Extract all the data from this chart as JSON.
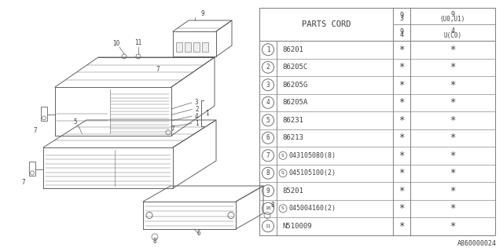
{
  "bg_color": "#ffffff",
  "diagram_id": "A860000024",
  "table_header": "PARTS CORD",
  "col1_top": "9\n3",
  "col1_sub": "(U0,U1)",
  "col2_top": "9\n4",
  "col2_sub": "U(C0)",
  "parts": [
    {
      "num": "1",
      "code": "86201",
      "standard": false
    },
    {
      "num": "2",
      "code": "86205C",
      "standard": false
    },
    {
      "num": "3",
      "code": "86205G",
      "standard": false
    },
    {
      "num": "4",
      "code": "86205A",
      "standard": false
    },
    {
      "num": "5",
      "code": "86231",
      "standard": false
    },
    {
      "num": "6",
      "code": "86213",
      "standard": false
    },
    {
      "num": "7",
      "code": "043105080(8)",
      "standard": true
    },
    {
      "num": "8",
      "code": "045105100(2)",
      "standard": true
    },
    {
      "num": "9",
      "code": "85201",
      "standard": false
    },
    {
      "num": "10",
      "code": "045004160(2)",
      "standard": true
    },
    {
      "num": "11",
      "code": "N510009",
      "standard": false
    }
  ],
  "gc": "#606060",
  "tc": "#404040"
}
